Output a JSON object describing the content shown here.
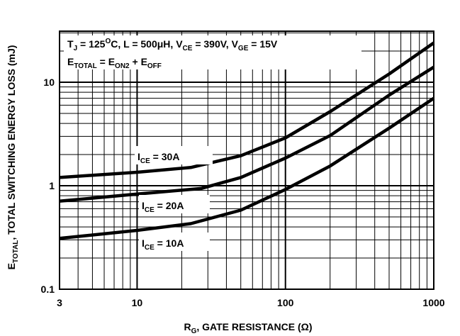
{
  "chart_data": {
    "type": "line",
    "title": "",
    "xlabel": {
      "main": "R",
      "sub": "G",
      "rest": ", GATE RESISTANCE (Ω)"
    },
    "ylabel": {
      "main": "E",
      "sub": "TOTAL",
      "rest": ", TOTAL SWITCHING ENERGY LOSS (mJ)"
    },
    "x_scale": "log",
    "y_scale": "log",
    "xlim": [
      3,
      1000
    ],
    "ylim": [
      0.1,
      30
    ],
    "x_ticks": [
      {
        "value": 3,
        "label": "3"
      },
      {
        "value": 10,
        "label": "10"
      },
      {
        "value": 100,
        "label": "100"
      },
      {
        "value": 1000,
        "label": "1000"
      }
    ],
    "y_ticks": [
      {
        "value": 0.1,
        "label": "0.1"
      },
      {
        "value": 1,
        "label": "1"
      },
      {
        "value": 10,
        "label": "10"
      }
    ],
    "grid": true,
    "conditions": [
      [
        {
          "t": "T"
        },
        {
          "t": "J",
          "sub": true
        },
        {
          "t": " = 125"
        },
        {
          "t": "O",
          "sup": true
        },
        {
          "t": "C, L = 500μH, V"
        },
        {
          "t": "CE",
          "sub": true
        },
        {
          "t": " = 390V, V"
        },
        {
          "t": "GE",
          "sub": true
        },
        {
          "t": " = 15V"
        }
      ],
      [
        {
          "t": "E"
        },
        {
          "t": "TOTAL",
          "sub": true
        },
        {
          "t": " = E"
        },
        {
          "t": "ON2",
          "sub": true
        },
        {
          "t": " + E"
        },
        {
          "t": "OFF",
          "sub": true
        }
      ]
    ],
    "series": [
      {
        "label": [
          {
            "t": "I"
          },
          {
            "t": "CE",
            "sub": true
          },
          {
            "t": " = 30A"
          }
        ],
        "x": [
          3,
          10,
          23,
          50,
          100,
          200,
          500,
          1000
        ],
        "y": [
          1.2,
          1.35,
          1.5,
          1.95,
          2.9,
          5.2,
          12,
          24
        ]
      },
      {
        "label": [
          {
            "t": "I"
          },
          {
            "t": "CE",
            "sub": true
          },
          {
            "t": " = 20A"
          }
        ],
        "x": [
          3,
          10,
          27,
          50,
          100,
          200,
          500,
          1000
        ],
        "y": [
          0.71,
          0.83,
          0.94,
          1.2,
          1.85,
          3.05,
          7.5,
          14
        ]
      },
      {
        "label": [
          {
            "t": "I"
          },
          {
            "t": "CE",
            "sub": true
          },
          {
            "t": " = 10A"
          }
        ],
        "x": [
          3,
          10,
          23,
          50,
          100,
          200,
          500,
          1000
        ],
        "y": [
          0.31,
          0.37,
          0.43,
          0.58,
          0.92,
          1.55,
          3.6,
          7
        ]
      }
    ]
  }
}
